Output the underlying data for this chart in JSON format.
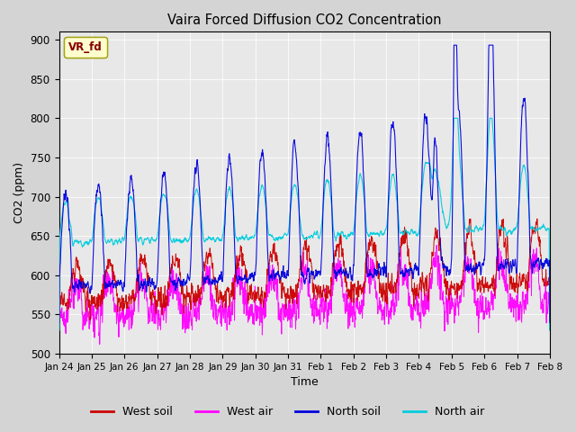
{
  "title": "Vaira Forced Diffusion CO2 Concentration",
  "xlabel": "Time",
  "ylabel": "CO2 (ppm)",
  "ylim": [
    500,
    910
  ],
  "yticks": [
    500,
    550,
    600,
    650,
    700,
    750,
    800,
    850,
    900
  ],
  "xtick_labels": [
    "Jan 24",
    "Jan 25",
    "Jan 26",
    "Jan 27",
    "Jan 28",
    "Jan 29",
    "Jan 30",
    "Jan 31",
    "Feb 1",
    "Feb 2",
    "Feb 3",
    "Feb 4",
    "Feb 5",
    "Feb 6",
    "Feb 7",
    "Feb 8"
  ],
  "legend_label": "VR_fd",
  "series": {
    "west_soil": {
      "color": "#cc0000",
      "label": "West soil"
    },
    "west_air": {
      "color": "#ff00ff",
      "label": "West air"
    },
    "north_soil": {
      "color": "#0000dd",
      "label": "North soil"
    },
    "north_air": {
      "color": "#00ccdd",
      "label": "North air"
    }
  },
  "bg_color": "#e8e8e8",
  "fig_bg_color": "#d4d4d4",
  "n_days": 15,
  "pts_per_day": 144,
  "seed": 7
}
